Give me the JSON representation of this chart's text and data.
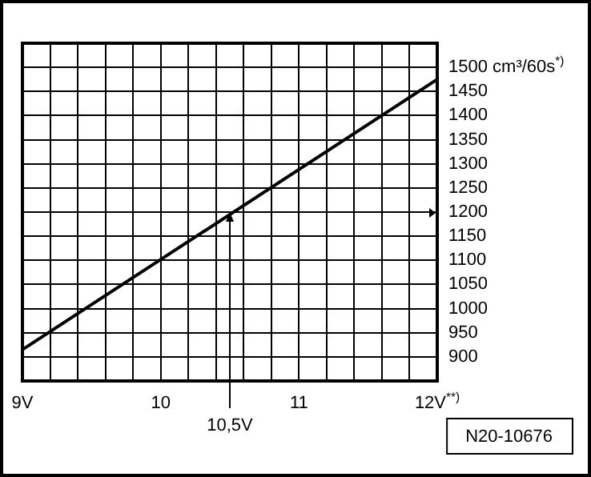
{
  "chart_data": {
    "type": "line",
    "x": [
      9,
      12
    ],
    "series": [
      {
        "color": "#000000",
        "values": [
          915,
          1475
        ]
      }
    ],
    "xlim": [
      9,
      12
    ],
    "xticks": [
      {
        "value": 9,
        "label": "9V"
      },
      {
        "value": 9.2,
        "label": null
      },
      {
        "value": 9.4,
        "label": null
      },
      {
        "value": 9.6,
        "label": null
      },
      {
        "value": 9.8,
        "label": null
      },
      {
        "value": 10,
        "label": "10"
      },
      {
        "value": 10.2,
        "label": null
      },
      {
        "value": 10.4,
        "label": null
      },
      {
        "value": 10.6,
        "label": null
      },
      {
        "value": 10.8,
        "label": null
      },
      {
        "value": 11,
        "label": "11"
      },
      {
        "value": 11.2,
        "label": null
      },
      {
        "value": 11.4,
        "label": null
      },
      {
        "value": 11.6,
        "label": null
      },
      {
        "value": 11.8,
        "label": null
      },
      {
        "value": 12,
        "label": "12V$^{**)}$"
      }
    ],
    "ylim": [
      850,
      1550
    ],
    "yticks": [
      {
        "value": 850,
        "label": null
      },
      900,
      950,
      1000,
      1050,
      1100,
      1150,
      1200,
      1250,
      1300,
      1350,
      1400,
      1450,
      {
        "value": 1500,
        "label": "1500 cm³/60s$^{*)}$"
      },
      {
        "value": 1550,
        "label": null
      }
    ],
    "grid": true,
    "legend": false,
    "marker": "none",
    "line_style": "solid",
    "annotations": [
      {
        "text": "10,5V",
        "x": 10.5,
        "y": 1200
      },
      "N20-10676"
    ]
  }
}
